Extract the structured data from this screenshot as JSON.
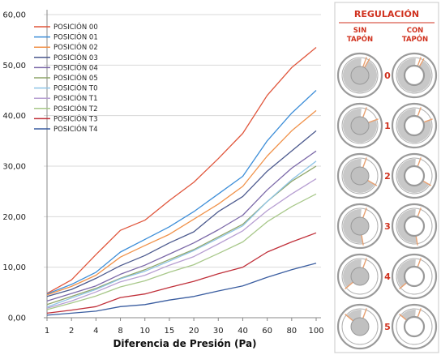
{
  "chart_data": {
    "type": "line",
    "xlabel": "Diferencia de Presión (Pa)",
    "categories": [
      "1",
      "2",
      "4",
      "8",
      "10",
      "15",
      "20",
      "30",
      "40",
      "60",
      "80",
      "100"
    ],
    "ylim": [
      0,
      60
    ],
    "yticks": [
      "0,00",
      "10,00",
      "20,00",
      "30,00",
      "40,00",
      "50,00",
      "60,00"
    ],
    "grid": true,
    "legend": "top-left",
    "series": [
      {
        "name": "POSICIÓN 00",
        "color": "#e0563c",
        "values": [
          4.8,
          7.5,
          12.5,
          17.3,
          19.3,
          23.2,
          26.8,
          31.5,
          36.5,
          44.0,
          49.5,
          53.5
        ]
      },
      {
        "name": "POSICIÓN 01",
        "color": "#3d8ed8",
        "values": [
          4.7,
          6.6,
          9.0,
          13.0,
          15.5,
          18.0,
          21.0,
          24.5,
          28.0,
          35.0,
          40.5,
          45.0
        ]
      },
      {
        "name": "POSICIÓN 02",
        "color": "#f0924a",
        "values": [
          4.5,
          6.2,
          8.4,
          12.0,
          14.3,
          16.5,
          19.5,
          22.5,
          26.0,
          32.0,
          37.0,
          41.0
        ]
      },
      {
        "name": "POSICIÓN 03",
        "color": "#4c5a8e",
        "values": [
          4.2,
          5.6,
          7.8,
          10.3,
          12.3,
          14.8,
          17.0,
          21.0,
          24.0,
          29.0,
          33.0,
          37.0
        ]
      },
      {
        "name": "POSICIÓN 04",
        "color": "#7b68a8",
        "values": [
          3.3,
          4.8,
          6.3,
          8.6,
          10.4,
          12.6,
          14.8,
          17.4,
          20.3,
          25.3,
          29.6,
          33.0
        ]
      },
      {
        "name": "POSICIÓN 05",
        "color": "#8fa66a",
        "values": [
          2.6,
          4.2,
          5.8,
          7.8,
          9.5,
          11.5,
          13.5,
          16.0,
          18.5,
          23.0,
          27.0,
          30.0
        ]
      },
      {
        "name": "POSICIÓN T0",
        "color": "#8fc4e6",
        "values": [
          2.1,
          3.9,
          5.6,
          7.7,
          9.2,
          11.2,
          13.3,
          15.7,
          18.2,
          23.0,
          27.3,
          31.0
        ]
      },
      {
        "name": "POSICIÓN T1",
        "color": "#b79fd2",
        "values": [
          1.9,
          3.3,
          5.1,
          7.1,
          8.4,
          10.4,
          12.1,
          14.6,
          17.2,
          21.2,
          24.5,
          27.5
        ]
      },
      {
        "name": "POSICIÓN T2",
        "color": "#a8c88a",
        "values": [
          1.6,
          2.9,
          4.3,
          6.1,
          7.3,
          9.0,
          10.5,
          12.7,
          15.0,
          19.0,
          22.0,
          24.5
        ]
      },
      {
        "name": "POSICIÓN T3",
        "color": "#c0303a",
        "values": [
          0.9,
          1.5,
          2.2,
          4.0,
          4.7,
          6.0,
          7.2,
          8.7,
          10.0,
          13.0,
          15.0,
          16.8
        ]
      },
      {
        "name": "POSICIÓN T4",
        "color": "#3a5da0",
        "values": [
          0.5,
          0.9,
          1.3,
          2.2,
          2.6,
          3.5,
          4.2,
          5.3,
          6.3,
          8.0,
          9.5,
          10.8
        ]
      }
    ]
  },
  "regulation": {
    "title": "REGULACIÓN",
    "col1_line1": "SIN",
    "col1_line2": "TAPÓN",
    "col2_line1": "CON",
    "col2_line2": "TAPÓN",
    "rows": [
      "0",
      "1",
      "2",
      "3",
      "4",
      "5"
    ],
    "colors": {
      "accent": "#d0321f",
      "ring": "#9a9a9a",
      "fill": "#c8c8c8",
      "line": "#e8a070"
    }
  }
}
